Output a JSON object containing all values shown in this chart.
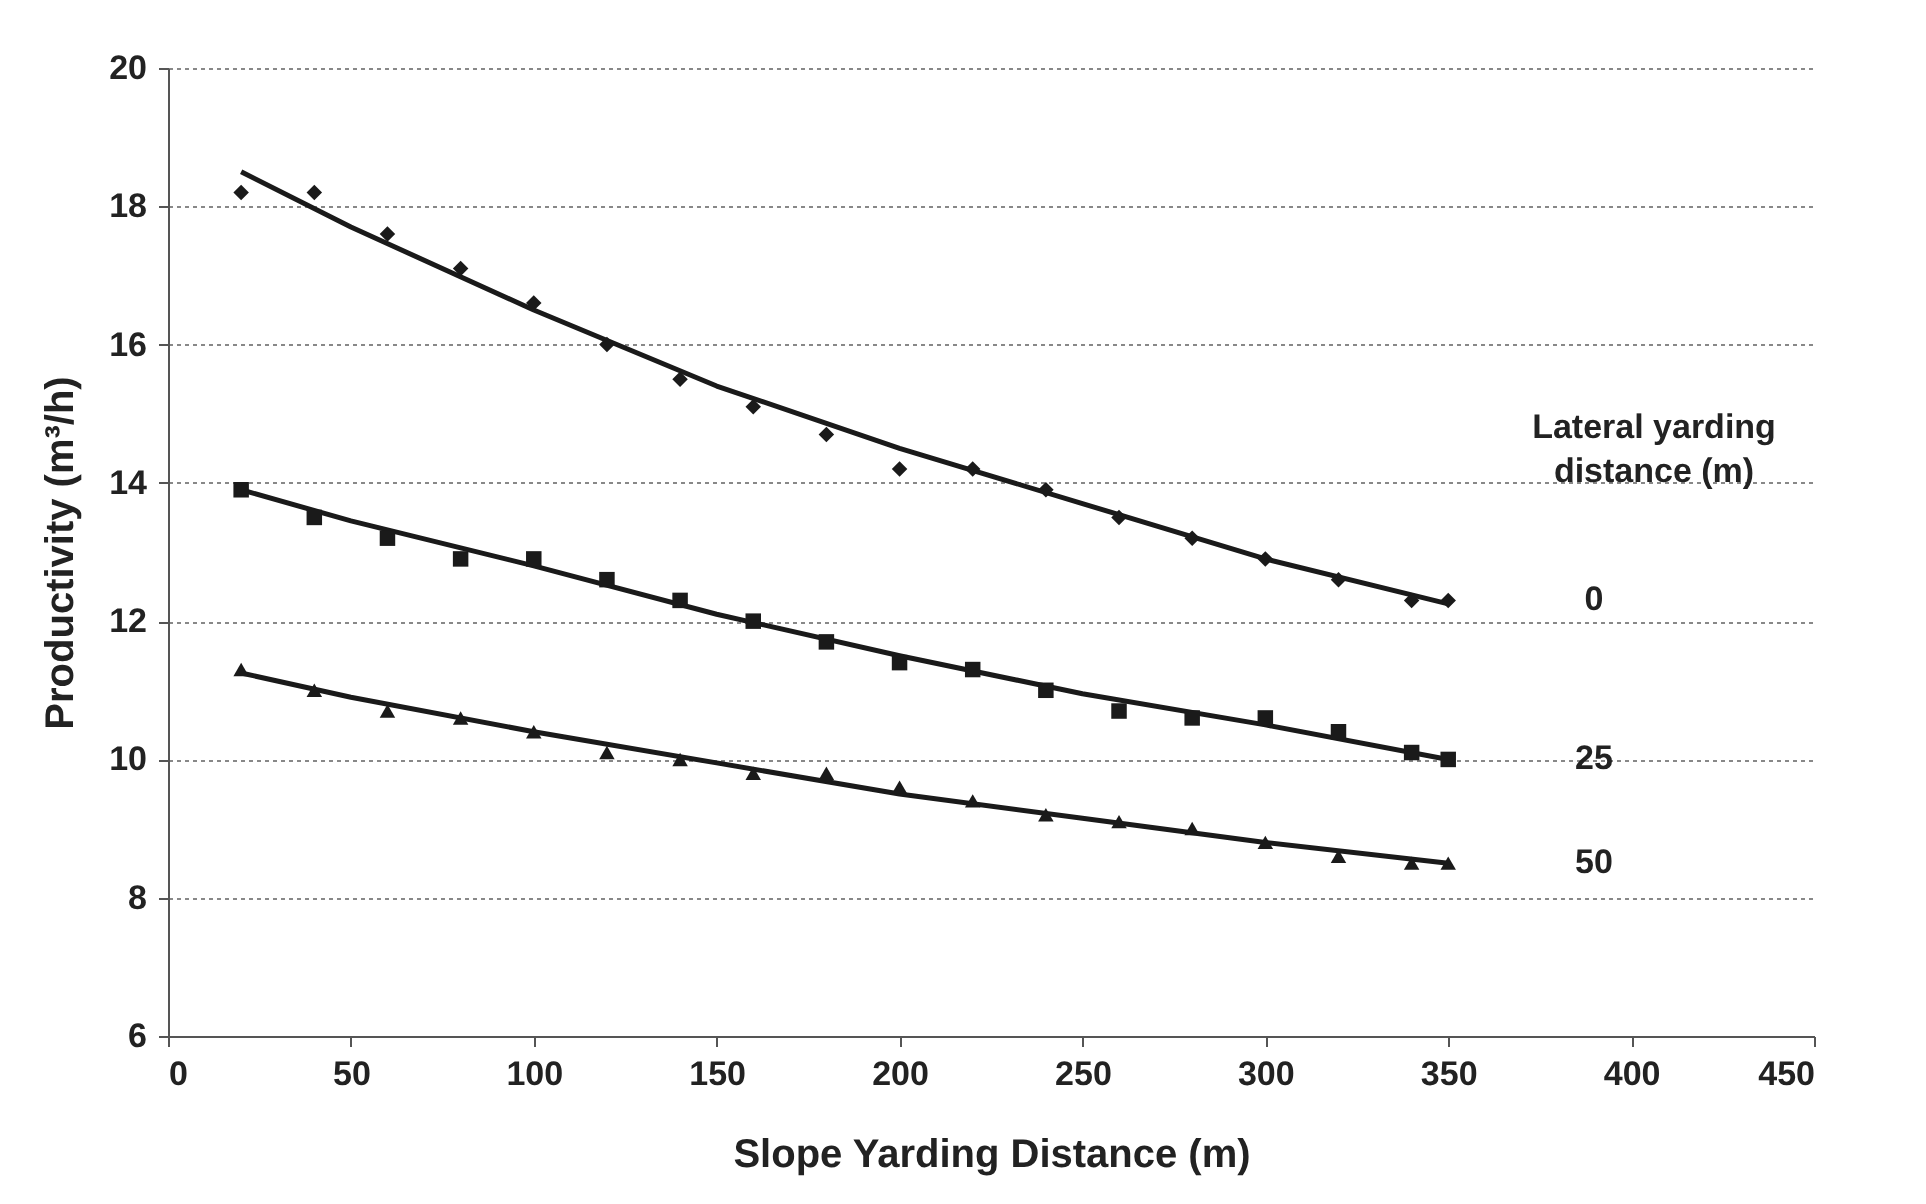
{
  "chart_data": {
    "type": "scatter",
    "xlabel": "Slope Yarding Distance (m)",
    "ylabel": "Productivity (m³/h)",
    "legend_title": "Lateral yarding distance (m)",
    "legend": "right",
    "grid": "y",
    "xlim": [
      0,
      450
    ],
    "xticks": [
      0,
      50,
      100,
      150,
      200,
      250,
      300,
      350,
      400,
      450
    ],
    "ylim": [
      6,
      20
    ],
    "yticks": [
      6,
      8,
      10,
      12,
      14,
      16,
      18,
      20
    ],
    "x": [
      20,
      40,
      60,
      80,
      100,
      120,
      140,
      160,
      180,
      200,
      220,
      240,
      260,
      280,
      300,
      320,
      340,
      350
    ],
    "series": [
      {
        "name": "0",
        "marker": "diamond",
        "color": "#1a1a1a",
        "values": [
          18.2,
          18.2,
          17.6,
          17.1,
          16.6,
          16.0,
          15.5,
          15.1,
          14.7,
          14.2,
          14.2,
          13.9,
          13.5,
          13.2,
          12.9,
          12.6,
          12.3,
          12.3
        ]
      },
      {
        "name": "25",
        "marker": "square",
        "color": "#1a1a1a",
        "values": [
          13.9,
          13.5,
          13.2,
          12.9,
          12.9,
          12.6,
          12.3,
          12.0,
          11.7,
          11.4,
          11.3,
          11.0,
          10.7,
          10.6,
          10.6,
          10.4,
          10.1,
          10.0
        ]
      },
      {
        "name": "50",
        "marker": "triangle",
        "color": "#1a1a1a",
        "values": [
          11.3,
          11.0,
          10.7,
          10.6,
          10.4,
          10.1,
          10.0,
          9.8,
          9.8,
          9.6,
          9.4,
          9.2,
          9.1,
          9.0,
          8.8,
          8.6,
          8.5,
          8.5
        ]
      },
      {
        "type": "line",
        "color": "#1a1a1a",
        "x": [
          20,
          50,
          100,
          150,
          200,
          250,
          300,
          350
        ],
        "values": [
          18.5,
          17.7,
          16.5,
          15.4,
          14.5,
          13.7,
          12.9,
          12.25
        ]
      },
      {
        "type": "line",
        "color": "#1a1a1a",
        "x": [
          20,
          50,
          100,
          150,
          200,
          250,
          300,
          350
        ],
        "values": [
          13.9,
          13.45,
          12.8,
          12.1,
          11.5,
          10.95,
          10.5,
          10.0
        ]
      },
      {
        "type": "line",
        "color": "#1a1a1a",
        "x": [
          20,
          50,
          100,
          150,
          200,
          250,
          300,
          350
        ],
        "values": [
          11.25,
          10.9,
          10.4,
          9.95,
          9.5,
          9.15,
          8.8,
          8.5
        ]
      }
    ]
  }
}
